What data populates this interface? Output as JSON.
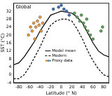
{
  "chart_data": {
    "type": "scatter",
    "title": "Global",
    "x_label": "Latitude (° N)",
    "y_label": "SST (°C)",
    "xlim": [
      -90,
      90
    ],
    "xticks": [
      -80,
      -60,
      -40,
      -20,
      0,
      20,
      40,
      60,
      80
    ],
    "ylim": [
      -4,
      36
    ],
    "yticks": [
      -4,
      0,
      4,
      8,
      12,
      16,
      20,
      24,
      28,
      32
    ],
    "grid": false,
    "legend": "center",
    "series": [
      {
        "name": "Model mean",
        "type": "line",
        "line_style": "solid",
        "color": "#000000",
        "x": [
          -90,
          -80,
          -70,
          -60,
          -50,
          -40,
          -30,
          -20,
          -10,
          0,
          10,
          20,
          30,
          40,
          50,
          60,
          70,
          80,
          90
        ],
        "values": [
          5,
          6,
          9,
          13,
          17,
          22,
          26,
          30,
          31,
          32,
          31.5,
          31,
          29,
          26,
          21,
          16,
          12,
          10,
          9
        ]
      },
      {
        "name": "Modern",
        "type": "line",
        "line_style": "dashed",
        "color": "#000000",
        "x": [
          -90,
          -80,
          -70,
          -60,
          -50,
          -40,
          -30,
          -20,
          -10,
          0,
          10,
          20,
          30,
          40,
          50,
          60,
          70,
          80,
          90
        ],
        "values": [
          -2,
          -2,
          0,
          4,
          9,
          14,
          20,
          25,
          27,
          28,
          28,
          27,
          23,
          18,
          12,
          7,
          3,
          0,
          -1
        ]
      },
      {
        "name": "Proxy data",
        "type": "scatter",
        "marker": "circle",
        "x": [
          -62,
          -58,
          -55,
          -52,
          -50,
          -48,
          -45,
          -42,
          -40,
          -38,
          -35,
          -15,
          -5,
          0,
          5,
          10,
          15,
          25,
          30,
          35,
          38,
          42,
          45,
          48,
          50,
          55,
          60,
          75,
          78
        ],
        "values": [
          20,
          24,
          22,
          26,
          18,
          24,
          27,
          25,
          29,
          22,
          26,
          33,
          34,
          35,
          33,
          32,
          30,
          31,
          29,
          27,
          30,
          26,
          24,
          28,
          22,
          20,
          18,
          22,
          24
        ],
        "colors": [
          "#e89a3c",
          "#e89a3c",
          "#e89a3c",
          "#e89a3c",
          "#e89a3c",
          "#e89a3c",
          "#e89a3c",
          "#e89a3c",
          "#e89a3c",
          "#e89a3c",
          "#e89a3c",
          "#3a6fb5",
          "#3a6fb5",
          "#3a6fb5",
          "#3a6fb5",
          "#3a6fb5",
          "#3a6fb5",
          "#5aa35a",
          "#5aa35a",
          "#5aa35a",
          "#5aa35a",
          "#5aa35a",
          "#5aa35a",
          "#5aa35a",
          "#5aa35a",
          "#5aa35a",
          "#5aa35a",
          "#5aa35a",
          "#5aa35a"
        ]
      }
    ]
  }
}
